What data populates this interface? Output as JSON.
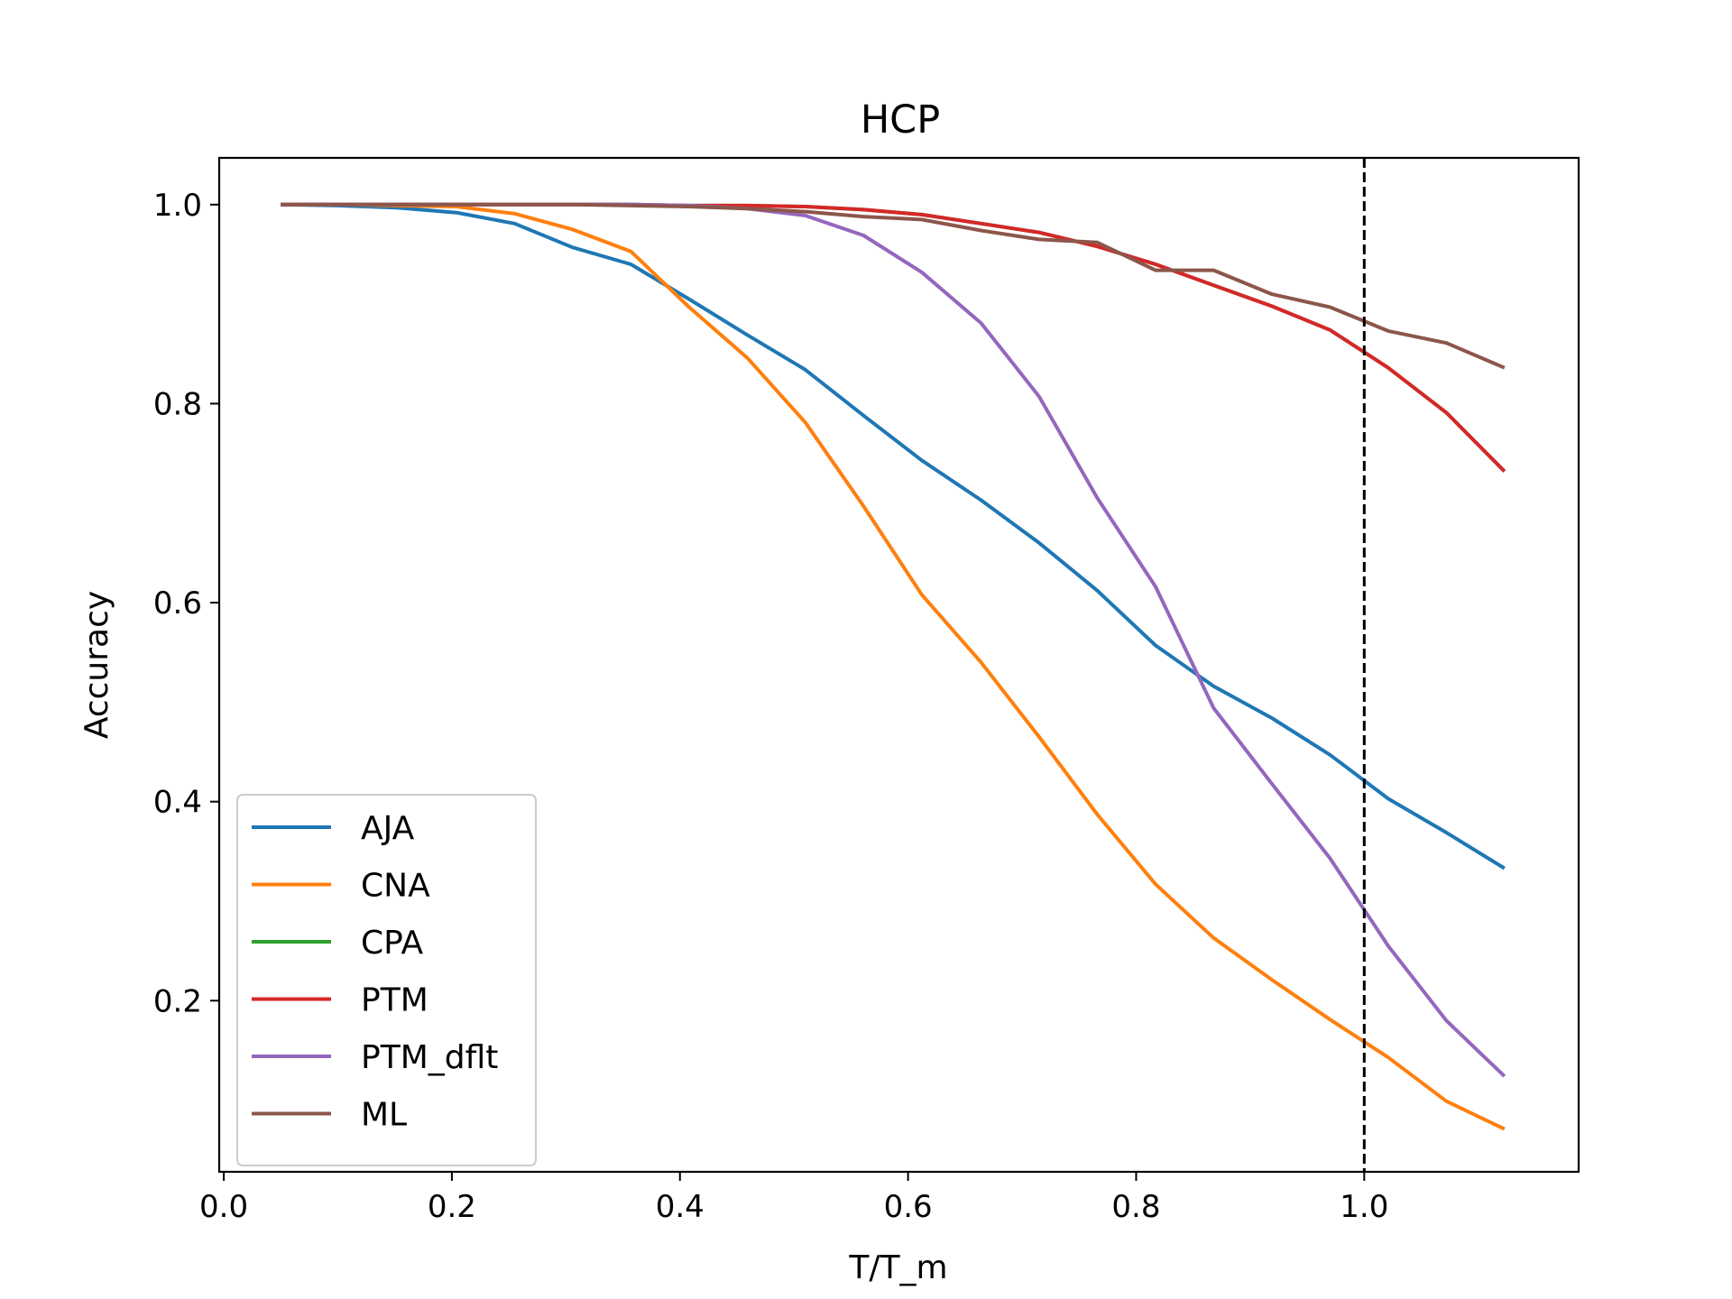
{
  "chart_data": {
    "type": "line",
    "title": "HCP",
    "xlabel": "T/T_m",
    "ylabel": "Accuracy",
    "xlim": [
      -0.004,
      1.188
    ],
    "ylim": [
      0.028,
      1.047
    ],
    "xticks": [
      0.0,
      0.2,
      0.4,
      0.6,
      0.8,
      1.0
    ],
    "xtick_labels": [
      "0.0",
      "0.2",
      "0.4",
      "0.6",
      "0.8",
      "1.0"
    ],
    "yticks": [
      0.2,
      0.4,
      0.6,
      0.8,
      1.0
    ],
    "ytick_labels": [
      "0.2",
      "0.4",
      "0.6",
      "0.8",
      "1.0"
    ],
    "grid": false,
    "legend_position": "lower-left",
    "reference_line": {
      "orientation": "vertical",
      "x": 1.0,
      "style": "dashed",
      "color": "#000000"
    },
    "x": [
      0.05,
      0.101,
      0.152,
      0.204,
      0.255,
      0.306,
      0.357,
      0.408,
      0.459,
      0.51,
      0.561,
      0.612,
      0.664,
      0.715,
      0.766,
      0.817,
      0.868,
      0.919,
      0.97,
      1.021,
      1.072,
      1.123
    ],
    "series": [
      {
        "name": "AJA",
        "color": "#1f77b4",
        "values": [
          1.0,
          0.999,
          0.997,
          0.992,
          0.981,
          0.957,
          0.94,
          0.905,
          0.869,
          0.834,
          0.788,
          0.743,
          0.703,
          0.66,
          0.612,
          0.557,
          0.516,
          0.484,
          0.447,
          0.403,
          0.369,
          0.333
        ]
      },
      {
        "name": "CNA",
        "color": "#ff7f0e",
        "values": [
          1.0,
          1.0,
          0.999,
          0.998,
          0.991,
          0.975,
          0.953,
          0.897,
          0.846,
          0.781,
          0.697,
          0.608,
          0.54,
          0.465,
          0.387,
          0.317,
          0.263,
          0.221,
          0.181,
          0.143,
          0.099,
          0.071
        ]
      },
      {
        "name": "CPA",
        "color": "#2ca02c",
        "values": [
          1.0,
          1.0,
          1.0,
          1.0,
          1.0,
          1.0,
          1.0,
          0.999,
          0.999,
          0.998,
          0.995,
          0.99,
          0.981,
          0.972,
          0.958,
          0.94,
          0.919,
          0.898,
          0.874,
          0.836,
          0.791,
          0.732
        ]
      },
      {
        "name": "PTM",
        "color": "#d62728",
        "values": [
          1.0,
          1.0,
          1.0,
          1.0,
          1.0,
          1.0,
          1.0,
          0.999,
          0.999,
          0.998,
          0.995,
          0.99,
          0.981,
          0.972,
          0.958,
          0.94,
          0.919,
          0.898,
          0.874,
          0.836,
          0.791,
          0.732
        ]
      },
      {
        "name": "PTM_dflt",
        "color": "#9467bd",
        "values": [
          1.0,
          1.0,
          1.0,
          1.0,
          1.0,
          1.0,
          1.0,
          0.999,
          0.996,
          0.989,
          0.969,
          0.932,
          0.881,
          0.807,
          0.705,
          0.616,
          0.494,
          0.418,
          0.343,
          0.255,
          0.18,
          0.124
        ]
      },
      {
        "name": "ML",
        "color": "#8c564b",
        "values": [
          1.0,
          1.0,
          1.0,
          1.0,
          1.0,
          1.0,
          0.999,
          0.998,
          0.996,
          0.993,
          0.988,
          0.985,
          0.974,
          0.965,
          0.962,
          0.934,
          0.934,
          0.91,
          0.897,
          0.873,
          0.861,
          0.836
        ]
      }
    ]
  }
}
